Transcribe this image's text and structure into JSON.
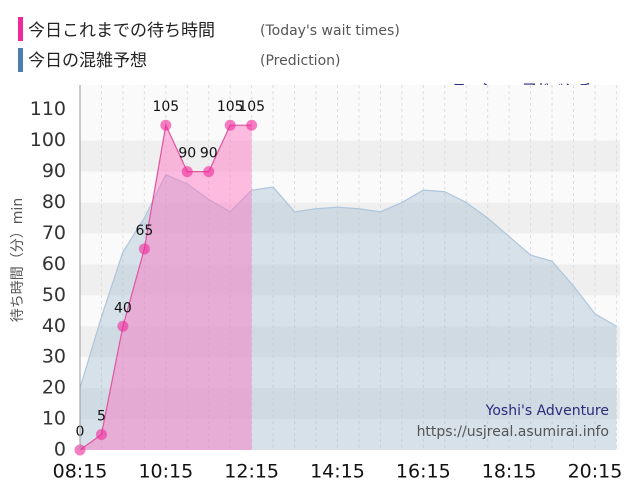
{
  "chart_data": {
    "type": "area",
    "subtitle": "ヨッシー・アドベンチャー",
    "ylabel": "待ち時間（分）min",
    "watermark": [
      "Yoshi's Adventure",
      "https://usjreal.asumirai.info"
    ],
    "series": [
      {
        "name": "今日これまでの待ち時間",
        "subname": "(Today's wait times)",
        "color": "#f0289b",
        "fill": "rgba(255,110,190,0.45)",
        "stroke": "#e0559f",
        "markers": true,
        "labels": true,
        "x": [
          495,
          525,
          555,
          585,
          615,
          645,
          675,
          705,
          735
        ],
        "values": [
          0,
          5,
          40,
          65,
          105,
          90,
          90,
          105,
          105
        ]
      },
      {
        "name": "今日の混雑予想",
        "subname": "(Prediction)",
        "color": "#4a7fb0",
        "fill": "rgba(160,188,210,0.4)",
        "stroke": "#aec6dc",
        "markers": false,
        "labels": false,
        "x": [
          495,
          525,
          555,
          585,
          615,
          645,
          675,
          705,
          735,
          765,
          795,
          825,
          855,
          885,
          915,
          945,
          975,
          1005,
          1035,
          1065,
          1095,
          1125,
          1155,
          1185,
          1215,
          1245
        ],
        "values": [
          20,
          43,
          64,
          75,
          89,
          86,
          81,
          77,
          84,
          85,
          77,
          78,
          78.5,
          78,
          77,
          80,
          84,
          83.5,
          80,
          75,
          69,
          63,
          61,
          53,
          44,
          40
        ]
      }
    ],
    "xlim": [
      495,
      1250
    ],
    "xticks": [
      {
        "value": 495,
        "label": "08:15"
      },
      {
        "value": 615,
        "label": "10:15"
      },
      {
        "value": 735,
        "label": "12:15"
      },
      {
        "value": 855,
        "label": "14:15"
      },
      {
        "value": 975,
        "label": "16:15"
      },
      {
        "value": 1095,
        "label": "18:15"
      },
      {
        "value": 1215,
        "label": "20:15"
      }
    ],
    "ylim": [
      0,
      118
    ],
    "yticks": [
      0,
      10,
      20,
      30,
      40,
      50,
      60,
      70,
      80,
      90,
      100,
      110
    ],
    "grid": true
  }
}
